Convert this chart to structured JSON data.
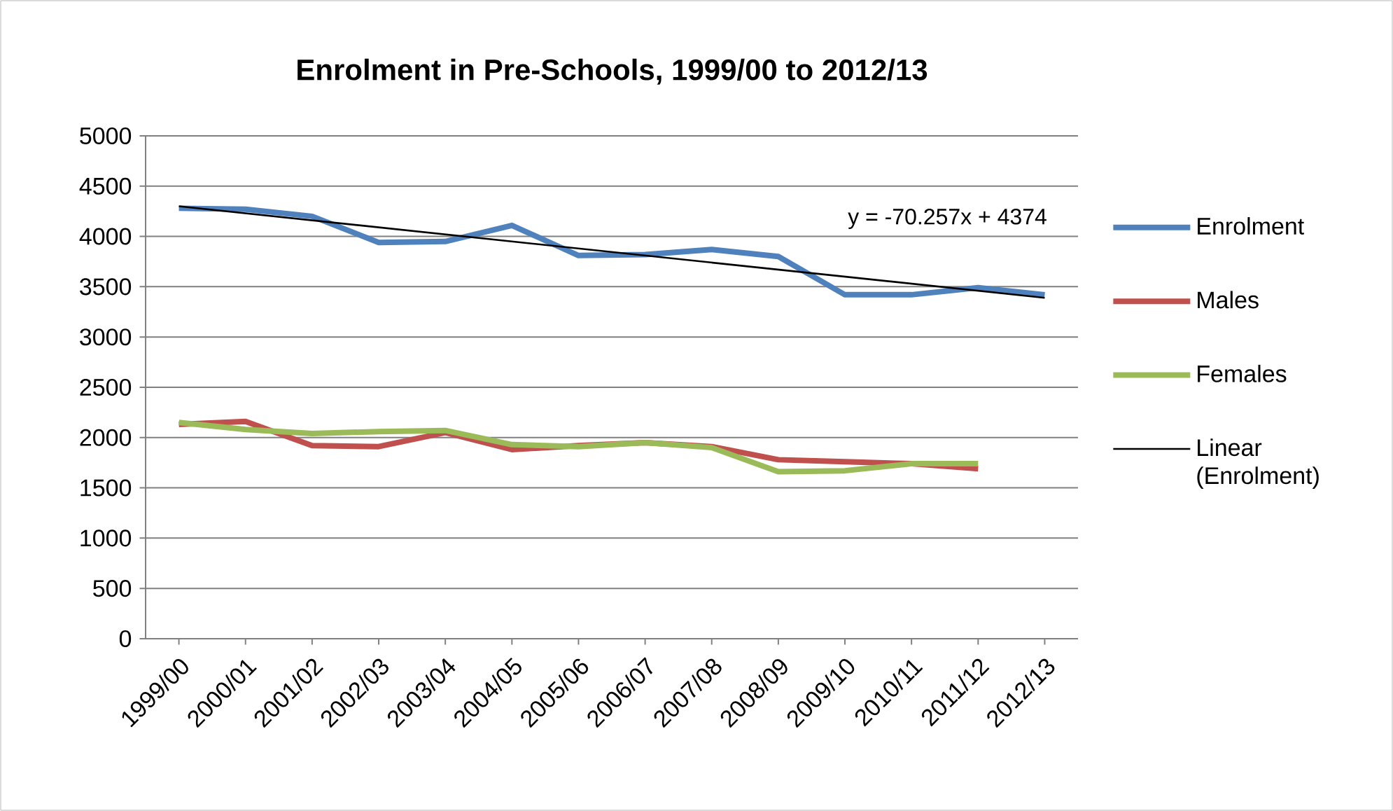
{
  "chart_data": {
    "type": "line",
    "title": "Enrolment in Pre-Schools, 1999/00 to 2012/13",
    "categories": [
      "1999/00",
      "2000/01",
      "2001/02",
      "2002/03",
      "2003/04",
      "2004/05",
      "2005/06",
      "2006/07",
      "2007/08",
      "2008/09",
      "2009/10",
      "2010/11",
      "2011/12",
      "2012/13"
    ],
    "series": [
      {
        "name": "Enrolment",
        "color": "#4f81bd",
        "values": [
          4280,
          4270,
          4200,
          3940,
          3950,
          4110,
          3810,
          3820,
          3870,
          3800,
          3420,
          3420,
          3490,
          3420
        ]
      },
      {
        "name": "Males",
        "color": "#c0504d",
        "values": [
          2130,
          2160,
          1920,
          1910,
          2050,
          1880,
          1920,
          1950,
          1910,
          1780,
          1760,
          1740,
          1690,
          null
        ]
      },
      {
        "name": "Females",
        "color": "#9bbb59",
        "values": [
          2150,
          2080,
          2040,
          2060,
          2070,
          1930,
          1910,
          1950,
          1900,
          1660,
          1670,
          1740,
          1740,
          null
        ]
      },
      {
        "name": "Linear (Enrolment)",
        "color": "#000000",
        "values": [
          4300,
          null,
          null,
          null,
          null,
          null,
          null,
          null,
          null,
          null,
          null,
          null,
          null,
          3390
        ]
      }
    ],
    "ylim": [
      0,
      5000
    ],
    "yticks": [
      0,
      500,
      1000,
      1500,
      2000,
      2500,
      3000,
      3500,
      4000,
      4500,
      5000
    ],
    "grid": "y",
    "legend": "right",
    "marker": "none",
    "annotations": [
      "y = -70.257x + 4374"
    ]
  }
}
